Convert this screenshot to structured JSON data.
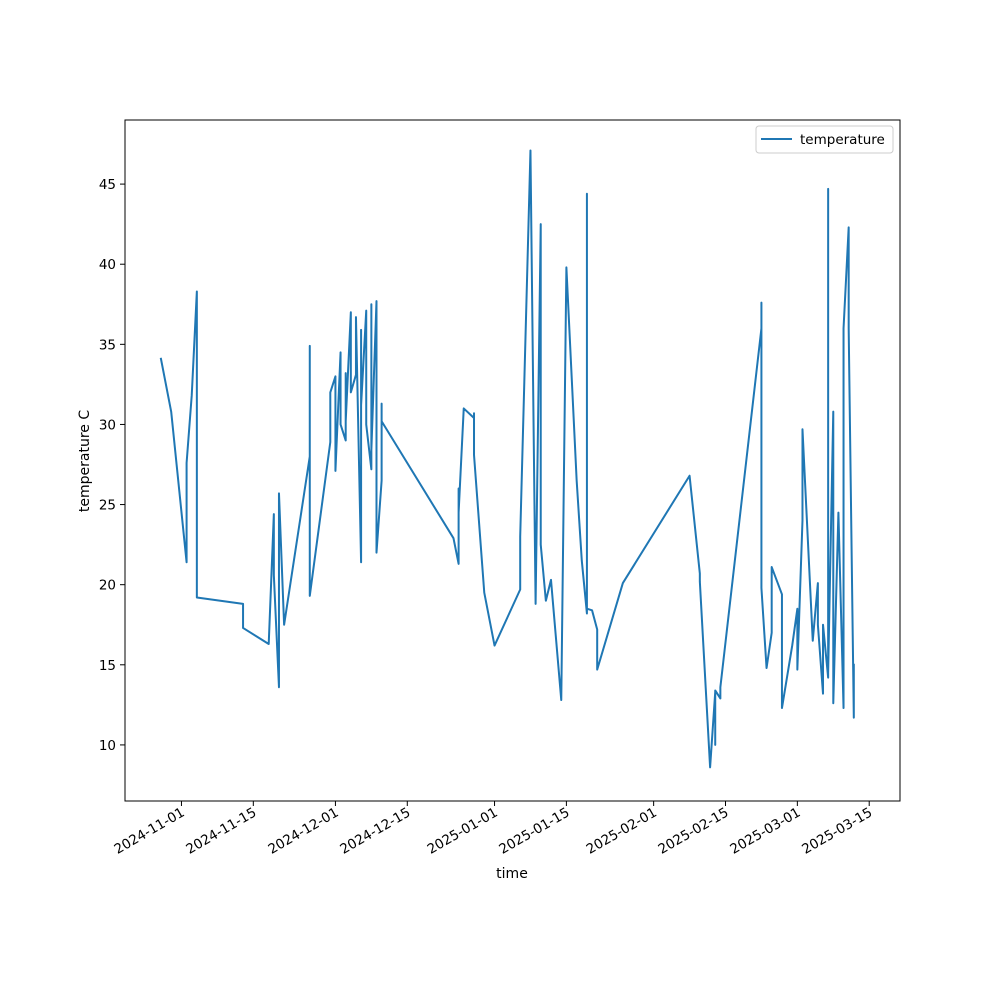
{
  "chart_data": {
    "type": "line",
    "title": "",
    "xlabel": "time",
    "ylabel": "temperature C",
    "legend_position": "upper-right",
    "grid": false,
    "xlim": [
      "2024-10-21",
      "2025-03-21"
    ],
    "ylim": [
      6.5,
      49.0
    ],
    "x_ticks": [
      "2024-11-01",
      "2024-11-15",
      "2024-12-01",
      "2024-12-15",
      "2025-01-01",
      "2025-01-15",
      "2025-02-01",
      "2025-02-15",
      "2025-03-01",
      "2025-03-15"
    ],
    "y_ticks": [
      10,
      15,
      20,
      25,
      30,
      35,
      40,
      45
    ],
    "series": [
      {
        "name": "temperature",
        "color": "#1f77b4",
        "points": [
          [
            "2024-10-28",
            34.1
          ],
          [
            "2024-10-30",
            30.8
          ],
          [
            "2024-11-02",
            21.4
          ],
          [
            "2024-11-02",
            27.6
          ],
          [
            "2024-11-03",
            31.8
          ],
          [
            "2024-11-04",
            38.3
          ],
          [
            "2024-11-04",
            19.2
          ],
          [
            "2024-11-13",
            18.8
          ],
          [
            "2024-11-13",
            17.3
          ],
          [
            "2024-11-18",
            16.3
          ],
          [
            "2024-11-19",
            24.4
          ],
          [
            "2024-11-19",
            20.6
          ],
          [
            "2024-11-20",
            13.6
          ],
          [
            "2024-11-20",
            25.7
          ],
          [
            "2024-11-21",
            17.5
          ],
          [
            "2024-11-26",
            28.0
          ],
          [
            "2024-11-26",
            34.9
          ],
          [
            "2024-11-26",
            19.3
          ],
          [
            "2024-11-30",
            28.9
          ],
          [
            "2024-11-30",
            32.0
          ],
          [
            "2024-12-01",
            33.0
          ],
          [
            "2024-12-01",
            27.1
          ],
          [
            "2024-12-02",
            34.5
          ],
          [
            "2024-12-02",
            30.0
          ],
          [
            "2024-12-03",
            29.0
          ],
          [
            "2024-12-03",
            33.2
          ],
          [
            "2024-12-03",
            30.2
          ],
          [
            "2024-12-04",
            37.0
          ],
          [
            "2024-12-04",
            32.0
          ],
          [
            "2024-12-05",
            33.1
          ],
          [
            "2024-12-05",
            36.7
          ],
          [
            "2024-12-06",
            21.4
          ],
          [
            "2024-12-06",
            35.9
          ],
          [
            "2024-12-06",
            31.2
          ],
          [
            "2024-12-07",
            37.1
          ],
          [
            "2024-12-07",
            30.0
          ],
          [
            "2024-12-08",
            27.2
          ],
          [
            "2024-12-08",
            37.5
          ],
          [
            "2024-12-08",
            28.4
          ],
          [
            "2024-12-09",
            37.7
          ],
          [
            "2024-12-09",
            31.0
          ],
          [
            "2024-12-09",
            22.0
          ],
          [
            "2024-12-10",
            26.5
          ],
          [
            "2024-12-10",
            31.3
          ],
          [
            "2024-12-10",
            30.2
          ],
          [
            "2024-12-24",
            22.9
          ],
          [
            "2024-12-25",
            21.3
          ],
          [
            "2024-12-25",
            26.0
          ],
          [
            "2024-12-25",
            24.5
          ],
          [
            "2024-12-26",
            31.0
          ],
          [
            "2024-12-28",
            30.4
          ],
          [
            "2024-12-28",
            30.7
          ],
          [
            "2024-12-28",
            28.1
          ],
          [
            "2024-12-30",
            19.5
          ],
          [
            "2025-01-01",
            16.2
          ],
          [
            "2025-01-06",
            19.7
          ],
          [
            "2025-01-06",
            23.0
          ],
          [
            "2025-01-08",
            47.1
          ],
          [
            "2025-01-09",
            18.8
          ],
          [
            "2025-01-10",
            42.5
          ],
          [
            "2025-01-10",
            22.5
          ],
          [
            "2025-01-11",
            19.0
          ],
          [
            "2025-01-12",
            20.3
          ],
          [
            "2025-01-14",
            12.8
          ],
          [
            "2025-01-15",
            39.8
          ],
          [
            "2025-01-17",
            26.5
          ],
          [
            "2025-01-18",
            21.5
          ],
          [
            "2025-01-19",
            18.2
          ],
          [
            "2025-01-19",
            44.4
          ],
          [
            "2025-01-19",
            18.5
          ],
          [
            "2025-01-20",
            18.4
          ],
          [
            "2025-01-21",
            17.2
          ],
          [
            "2025-01-21",
            14.7
          ],
          [
            "2025-01-26",
            20.1
          ],
          [
            "2025-02-08",
            26.8
          ],
          [
            "2025-02-10",
            20.7
          ],
          [
            "2025-02-10",
            20.2
          ],
          [
            "2025-02-12",
            8.6
          ],
          [
            "2025-02-13",
            13.3
          ],
          [
            "2025-02-13",
            10.0
          ],
          [
            "2025-02-13",
            13.4
          ],
          [
            "2025-02-14",
            12.9
          ],
          [
            "2025-02-14",
            13.6
          ],
          [
            "2025-02-22",
            36.0
          ],
          [
            "2025-02-22",
            37.6
          ],
          [
            "2025-02-22",
            19.8
          ],
          [
            "2025-02-23",
            14.8
          ],
          [
            "2025-02-24",
            17.0
          ],
          [
            "2025-02-24",
            21.1
          ],
          [
            "2025-02-26",
            19.4
          ],
          [
            "2025-02-26",
            12.3
          ],
          [
            "2025-02-28",
            16.2
          ],
          [
            "2025-03-01",
            18.5
          ],
          [
            "2025-03-01",
            14.7
          ],
          [
            "2025-03-02",
            24.0
          ],
          [
            "2025-03-02",
            29.7
          ],
          [
            "2025-03-04",
            16.5
          ],
          [
            "2025-03-05",
            20.1
          ],
          [
            "2025-03-05",
            17.5
          ],
          [
            "2025-03-06",
            13.2
          ],
          [
            "2025-03-06",
            17.5
          ],
          [
            "2025-03-07",
            14.2
          ],
          [
            "2025-03-07",
            44.7
          ],
          [
            "2025-03-07",
            14.5
          ],
          [
            "2025-03-08",
            30.8
          ],
          [
            "2025-03-08",
            12.6
          ],
          [
            "2025-03-09",
            24.5
          ],
          [
            "2025-03-10",
            12.3
          ],
          [
            "2025-03-10",
            36.0
          ],
          [
            "2025-03-11",
            42.3
          ],
          [
            "2025-03-11",
            36.0
          ],
          [
            "2025-03-12",
            11.7
          ],
          [
            "2025-03-12",
            15.0
          ]
        ]
      }
    ]
  }
}
